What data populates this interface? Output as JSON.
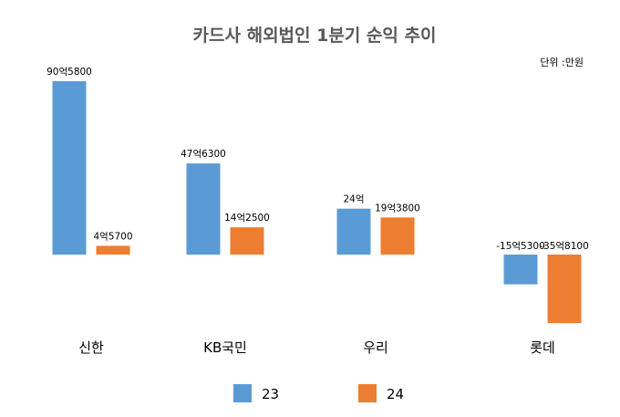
{
  "chart_data": {
    "type": "bar",
    "title": "카드사 해외법인 1분기 순익 추이",
    "unit_note": "단위 :만원",
    "categories": [
      "신한",
      "KB국민",
      "우리",
      "롯데"
    ],
    "series": [
      {
        "name": "23",
        "color": "#5B9BD5",
        "values": [
          905800,
          476300,
          240000,
          -155300
        ],
        "labels": [
          "90억5800",
          "47억6300",
          "24억",
          "-15억5300"
        ]
      },
      {
        "name": "24",
        "color": "#ED7D31",
        "values": [
          45700,
          142500,
          193800,
          -358100
        ],
        "labels": [
          "4억5700",
          "14억2500",
          "19억3800",
          "-35억8100"
        ]
      }
    ],
    "ylim": [
      -380000,
      905800
    ],
    "grid": false,
    "legend_position": "bottom"
  }
}
